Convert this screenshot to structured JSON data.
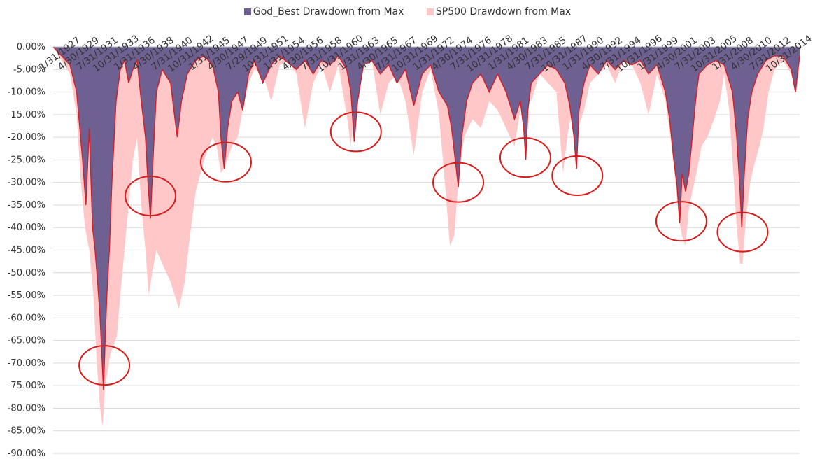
{
  "chart_data": {
    "type": "area",
    "title": "",
    "xlabel": "",
    "ylabel": "",
    "ylim": [
      -90,
      0
    ],
    "y_ticks": [
      "0.00%",
      "-5.00%",
      "-10.00%",
      "-15.00%",
      "-20.00%",
      "-25.00%",
      "-30.00%",
      "-35.00%",
      "-40.00%",
      "-45.00%",
      "-50.00%",
      "-55.00%",
      "-60.00%",
      "-65.00%",
      "-70.00%",
      "-75.00%",
      "-80.00%",
      "-85.00%",
      "-90.00%"
    ],
    "x_ticks": [
      "1/31/1927",
      "4/30/1929",
      "7/31/1931",
      "10/31/1933",
      "1/31/1936",
      "4/30/1938",
      "7/31/1940",
      "10/31/1942",
      "1/31/1945",
      "4/30/1947",
      "7/29/1949",
      "10/31/1951",
      "1/31/1954",
      "4/30/1956",
      "7/31/1958",
      "10/31/1960",
      "1/31/1963",
      "4/30/1965",
      "7/31/1967",
      "10/31/1969",
      "1/31/1972",
      "4/30/1974",
      "7/31/1976",
      "10/31/1978",
      "1/31/1981",
      "4/30/1983",
      "7/31/1985",
      "10/31/1987",
      "1/31/1990",
      "4/30/1992",
      "7/31/1994",
      "10/31/1996",
      "1/31/1999",
      "4/30/2001",
      "7/31/2003",
      "10/31/2005",
      "1/31/2008",
      "4/30/2010",
      "7/31/2012",
      "10/31/2014"
    ],
    "x_range": [
      1927,
      2016
    ],
    "grid": true,
    "legend_position": "top-center",
    "series": [
      {
        "name": "God_Best Drawdown from Max",
        "color": "#6e6191",
        "edge_color": "#d01e2a",
        "points": [
          [
            1927,
            0
          ],
          [
            1928,
            -2
          ],
          [
            1929,
            -4
          ],
          [
            1929.8,
            -10
          ],
          [
            1930.5,
            -25
          ],
          [
            1930.9,
            -35
          ],
          [
            1931.3,
            -18
          ],
          [
            1931.7,
            -40
          ],
          [
            1932.0,
            -45
          ],
          [
            1932.3,
            -52
          ],
          [
            1932.6,
            -60
          ],
          [
            1932.8,
            -68
          ],
          [
            1933.0,
            -76
          ],
          [
            1933.2,
            -65
          ],
          [
            1933.4,
            -55
          ],
          [
            1933.7,
            -45
          ],
          [
            1934.0,
            -30
          ],
          [
            1934.5,
            -12
          ],
          [
            1935,
            -5
          ],
          [
            1935.5,
            -3
          ],
          [
            1936,
            -8
          ],
          [
            1936.5,
            -5
          ],
          [
            1937,
            -3
          ],
          [
            1937.5,
            -12
          ],
          [
            1938,
            -20
          ],
          [
            1938.3,
            -30
          ],
          [
            1938.6,
            -38
          ],
          [
            1938.9,
            -25
          ],
          [
            1939.3,
            -10
          ],
          [
            1940,
            -5
          ],
          [
            1941,
            -8
          ],
          [
            1941.8,
            -20
          ],
          [
            1942.3,
            -12
          ],
          [
            1943,
            -6
          ],
          [
            1944,
            -3
          ],
          [
            1945,
            -2
          ],
          [
            1946,
            -4
          ],
          [
            1946.7,
            -10
          ],
          [
            1947,
            -20
          ],
          [
            1947.4,
            -27
          ],
          [
            1947.8,
            -18
          ],
          [
            1948.3,
            -12
          ],
          [
            1949,
            -10
          ],
          [
            1949.6,
            -14
          ],
          [
            1950.3,
            -6
          ],
          [
            1951,
            -3
          ],
          [
            1952,
            -8
          ],
          [
            1953,
            -4
          ],
          [
            1954,
            -2
          ],
          [
            1956,
            -5
          ],
          [
            1957,
            -3
          ],
          [
            1958,
            -6
          ],
          [
            1959,
            -3
          ],
          [
            1960,
            -4
          ],
          [
            1961,
            -2
          ],
          [
            1962,
            -5
          ],
          [
            1962.5,
            -10
          ],
          [
            1962.9,
            -21
          ],
          [
            1963.3,
            -12
          ],
          [
            1964,
            -4
          ],
          [
            1965,
            -3
          ],
          [
            1966,
            -6
          ],
          [
            1967,
            -4
          ],
          [
            1968,
            -8
          ],
          [
            1969,
            -5
          ],
          [
            1970,
            -13
          ],
          [
            1971,
            -6
          ],
          [
            1972,
            -4
          ],
          [
            1973,
            -10
          ],
          [
            1974,
            -13
          ],
          [
            1974.5,
            -18
          ],
          [
            1975,
            -26
          ],
          [
            1975.3,
            -31
          ],
          [
            1975.7,
            -20
          ],
          [
            1976.3,
            -12
          ],
          [
            1977,
            -8
          ],
          [
            1978,
            -6
          ],
          [
            1979,
            -10
          ],
          [
            1980,
            -6
          ],
          [
            1981,
            -10
          ],
          [
            1982,
            -16
          ],
          [
            1982.7,
            -12
          ],
          [
            1983.1,
            -18
          ],
          [
            1983.35,
            -25
          ],
          [
            1983.6,
            -14
          ],
          [
            1984,
            -8
          ],
          [
            1985,
            -6
          ],
          [
            1986,
            -4
          ],
          [
            1987,
            -5
          ],
          [
            1988,
            -8
          ],
          [
            1988.6,
            -13
          ],
          [
            1989.1,
            -20
          ],
          [
            1989.4,
            -27
          ],
          [
            1989.7,
            -14
          ],
          [
            1990.3,
            -8
          ],
          [
            1991,
            -4
          ],
          [
            1992,
            -6
          ],
          [
            1993,
            -3
          ],
          [
            1994,
            -5
          ],
          [
            1995,
            -3
          ],
          [
            1996,
            -4
          ],
          [
            1997,
            -3
          ],
          [
            1998,
            -6
          ],
          [
            1999,
            -4
          ],
          [
            2000,
            -10
          ],
          [
            2000.5,
            -16
          ],
          [
            2001,
            -25
          ],
          [
            2001.4,
            -31
          ],
          [
            2001.7,
            -39
          ],
          [
            2002.0,
            -28
          ],
          [
            2002.4,
            -32
          ],
          [
            2002.8,
            -28
          ],
          [
            2003.2,
            -20
          ],
          [
            2003.6,
            -12
          ],
          [
            2004,
            -6
          ],
          [
            2005,
            -4
          ],
          [
            2006,
            -3
          ],
          [
            2007,
            -4
          ],
          [
            2008,
            -10
          ],
          [
            2008.5,
            -20
          ],
          [
            2008.9,
            -32
          ],
          [
            2009.1,
            -40
          ],
          [
            2009.4,
            -28
          ],
          [
            2009.8,
            -16
          ],
          [
            2010.3,
            -10
          ],
          [
            2011,
            -6
          ],
          [
            2012,
            -3
          ],
          [
            2013,
            -2
          ],
          [
            2014,
            -2
          ],
          [
            2015,
            -5
          ],
          [
            2015.5,
            -10
          ],
          [
            2015.8,
            -5
          ],
          [
            2016,
            -2
          ]
        ]
      },
      {
        "name": "SP500 Drawdown from Max",
        "color": "#ffc7c7",
        "points": [
          [
            1927,
            0
          ],
          [
            1928,
            -3
          ],
          [
            1929,
            -6
          ],
          [
            1929.8,
            -15
          ],
          [
            1930.3,
            -30
          ],
          [
            1930.8,
            -40
          ],
          [
            1931.3,
            -45
          ],
          [
            1931.8,
            -55
          ],
          [
            1932.2,
            -70
          ],
          [
            1932.6,
            -80
          ],
          [
            1932.9,
            -84
          ],
          [
            1933.2,
            -75
          ],
          [
            1933.5,
            -72
          ],
          [
            1933.8,
            -68
          ],
          [
            1934.2,
            -66
          ],
          [
            1934.6,
            -64
          ],
          [
            1935.0,
            -55
          ],
          [
            1935.5,
            -45
          ],
          [
            1936,
            -35
          ],
          [
            1936.5,
            -25
          ],
          [
            1937,
            -20
          ],
          [
            1937.5,
            -35
          ],
          [
            1938,
            -45
          ],
          [
            1938.4,
            -55
          ],
          [
            1938.8,
            -50
          ],
          [
            1939.3,
            -45
          ],
          [
            1940,
            -48
          ],
          [
            1941,
            -52
          ],
          [
            1942,
            -58
          ],
          [
            1942.7,
            -52
          ],
          [
            1943.3,
            -42
          ],
          [
            1944,
            -32
          ],
          [
            1945,
            -25
          ],
          [
            1946,
            -20
          ],
          [
            1946.5,
            -22
          ],
          [
            1947,
            -28
          ],
          [
            1947.6,
            -26
          ],
          [
            1948.3,
            -22
          ],
          [
            1949,
            -20
          ],
          [
            1949.6,
            -14
          ],
          [
            1950.3,
            -8
          ],
          [
            1951,
            -5
          ],
          [
            1952,
            -6
          ],
          [
            1953,
            -12
          ],
          [
            1954,
            -4
          ],
          [
            1955,
            -3
          ],
          [
            1956,
            -6
          ],
          [
            1957,
            -18
          ],
          [
            1958,
            -8
          ],
          [
            1959,
            -4
          ],
          [
            1960,
            -10
          ],
          [
            1961,
            -4
          ],
          [
            1962,
            -15
          ],
          [
            1962.5,
            -22
          ],
          [
            1963,
            -10
          ],
          [
            1964,
            -4
          ],
          [
            1965,
            -3
          ],
          [
            1966,
            -15
          ],
          [
            1967,
            -8
          ],
          [
            1968,
            -6
          ],
          [
            1969,
            -12
          ],
          [
            1970,
            -24
          ],
          [
            1971,
            -10
          ],
          [
            1972,
            -5
          ],
          [
            1973,
            -15
          ],
          [
            1973.7,
            -30
          ],
          [
            1974.3,
            -44
          ],
          [
            1974.8,
            -42
          ],
          [
            1975.3,
            -30
          ],
          [
            1976,
            -20
          ],
          [
            1977,
            -16
          ],
          [
            1978,
            -18
          ],
          [
            1979,
            -12
          ],
          [
            1980,
            -14
          ],
          [
            1981,
            -18
          ],
          [
            1982,
            -22
          ],
          [
            1982.7,
            -14
          ],
          [
            1983.4,
            -8
          ],
          [
            1984,
            -12
          ],
          [
            1985,
            -6
          ],
          [
            1986,
            -8
          ],
          [
            1987,
            -10
          ],
          [
            1987.8,
            -28
          ],
          [
            1988.3,
            -20
          ],
          [
            1989,
            -12
          ],
          [
            1989.6,
            -18
          ],
          [
            1990.3,
            -14
          ],
          [
            1991,
            -8
          ],
          [
            1992,
            -6
          ],
          [
            1993,
            -4
          ],
          [
            1994,
            -8
          ],
          [
            1995,
            -3
          ],
          [
            1996,
            -4
          ],
          [
            1997,
            -8
          ],
          [
            1998,
            -15
          ],
          [
            1999,
            -6
          ],
          [
            2000,
            -12
          ],
          [
            2000.6,
            -20
          ],
          [
            2001.2,
            -30
          ],
          [
            2001.6,
            -38
          ],
          [
            2002.0,
            -42
          ],
          [
            2002.4,
            -44
          ],
          [
            2002.8,
            -36
          ],
          [
            2003.2,
            -32
          ],
          [
            2003.7,
            -28
          ],
          [
            2004.3,
            -22
          ],
          [
            2005,
            -20
          ],
          [
            2005.8,
            -16
          ],
          [
            2006.5,
            -12
          ],
          [
            2007,
            -6
          ],
          [
            2007.6,
            -14
          ],
          [
            2008.1,
            -28
          ],
          [
            2008.5,
            -40
          ],
          [
            2008.9,
            -48
          ],
          [
            2009.2,
            -48
          ],
          [
            2009.6,
            -38
          ],
          [
            2010.1,
            -30
          ],
          [
            2010.6,
            -26
          ],
          [
            2011.2,
            -22
          ],
          [
            2011.7,
            -18
          ],
          [
            2012.3,
            -10
          ],
          [
            2013,
            -5
          ],
          [
            2014,
            -3
          ],
          [
            2015,
            -6
          ],
          [
            2015.6,
            -10
          ],
          [
            2016,
            -4
          ]
        ]
      }
    ],
    "highlights": [
      {
        "x": 1933.1,
        "y": -70.5
      },
      {
        "x": 1938.6,
        "y": -33
      },
      {
        "x": 1947.6,
        "y": -25.5
      },
      {
        "x": 1963.1,
        "y": -18.8
      },
      {
        "x": 1975.3,
        "y": -30
      },
      {
        "x": 1983.3,
        "y": -24.5
      },
      {
        "x": 1989.5,
        "y": -28.5
      },
      {
        "x": 2001.9,
        "y": -38.6
      },
      {
        "x": 2009.2,
        "y": -41
      }
    ]
  }
}
